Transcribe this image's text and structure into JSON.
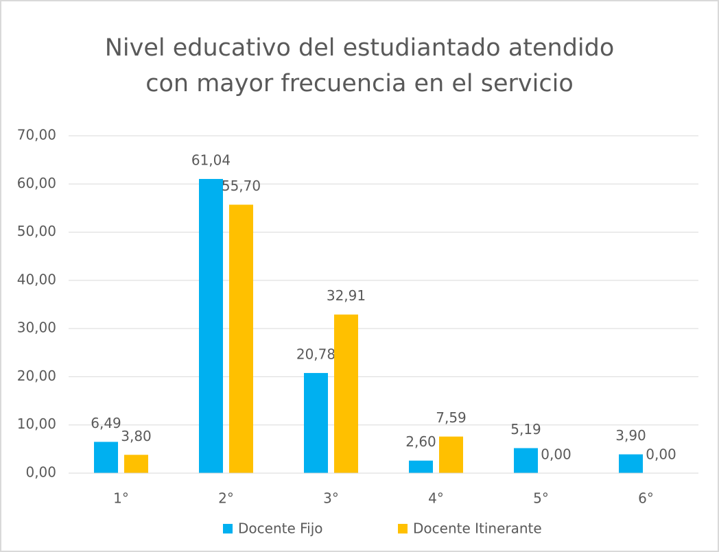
{
  "chart_data": {
    "type": "bar",
    "title": "Nivel educativo del estudiantado atendido con mayor frecuencia en el servicio",
    "categories": [
      "1°",
      "2°",
      "3°",
      "4°",
      "5°",
      "6°"
    ],
    "series": [
      {
        "name": "Docente Fijo",
        "color": "#00b0f0",
        "values": [
          6.49,
          61.04,
          20.78,
          2.6,
          5.19,
          3.9
        ],
        "value_labels": [
          "6,49",
          "61,04",
          "20,78",
          "2,60",
          "5,19",
          "3,90"
        ]
      },
      {
        "name": "Docente Itinerante",
        "color": "#ffc000",
        "values": [
          3.8,
          55.7,
          32.91,
          7.59,
          0.0,
          0.0
        ],
        "value_labels": [
          "3,80",
          "55,70",
          "32,91",
          "7,59",
          "0,00",
          "0,00"
        ]
      }
    ],
    "ylim": [
      0,
      70
    ],
    "yticks": [
      {
        "value": 0,
        "label": "0,00"
      },
      {
        "value": 10,
        "label": "10,00"
      },
      {
        "value": 20,
        "label": "20,00"
      },
      {
        "value": 30,
        "label": "30,00"
      },
      {
        "value": 40,
        "label": "40,00"
      },
      {
        "value": 50,
        "label": "50,00"
      },
      {
        "value": 60,
        "label": "60,00"
      },
      {
        "value": 70,
        "label": "70,00"
      }
    ],
    "grid": true,
    "legend": "bottom"
  }
}
